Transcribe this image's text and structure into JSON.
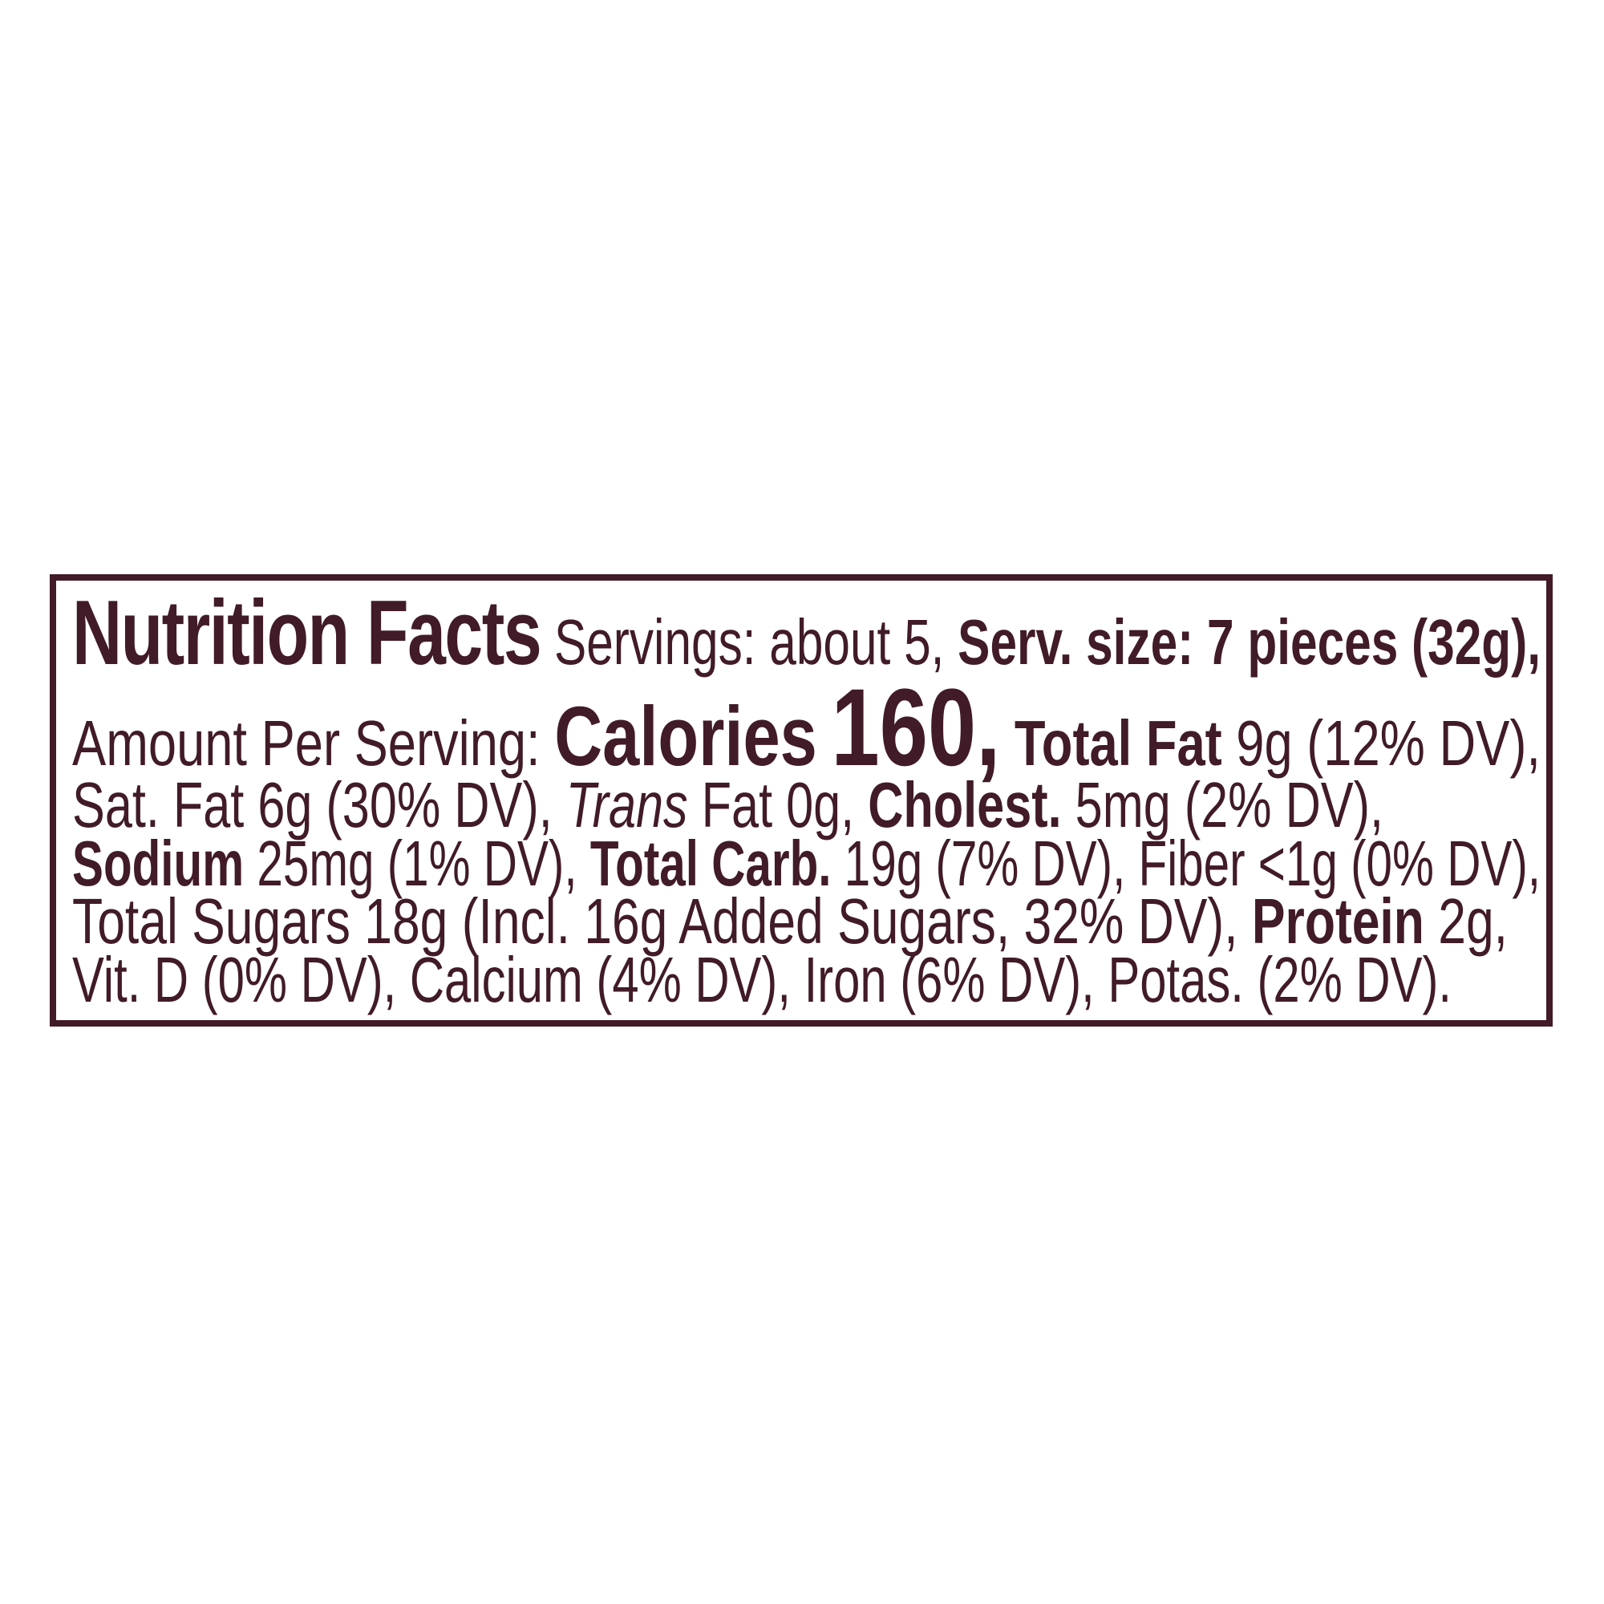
{
  "colors": {
    "ink": "#411B27",
    "paper": "#FFFFFF"
  },
  "label": {
    "title": "Nutrition Facts",
    "line1": {
      "servings": "Servings: about 5,",
      "serving_size": "Serv. size: 7 pieces (32g),"
    },
    "line2": {
      "amount_per_serving": "Amount Per Serving:",
      "calories_label": "Calories",
      "calories_value": "160,",
      "total_fat_label": "Total Fat",
      "total_fat_value": "9g (12% DV),"
    },
    "line3": {
      "sat_fat": "Sat. Fat 6g (30% DV),",
      "trans_word": "Trans",
      "trans_fat_rest": "Fat 0g,",
      "cholesterol_label": "Cholest.",
      "cholesterol_value": "5mg (2% DV),"
    },
    "line4": {
      "sodium_label": "Sodium",
      "sodium_value": "25mg (1% DV),",
      "total_carb_label": "Total Carb.",
      "total_carb_value": "19g (7% DV), Fiber <1g (0% DV),"
    },
    "line5": {
      "total_sugars": "Total Sugars 18g (Incl. 16g Added Sugars, 32% DV),",
      "protein_label": "Protein",
      "protein_value": "2g,"
    },
    "line6": {
      "micronutrients": "Vit. D (0% DV), Calcium (4% DV), Iron (6% DV), Potas. (2% DV)."
    }
  }
}
